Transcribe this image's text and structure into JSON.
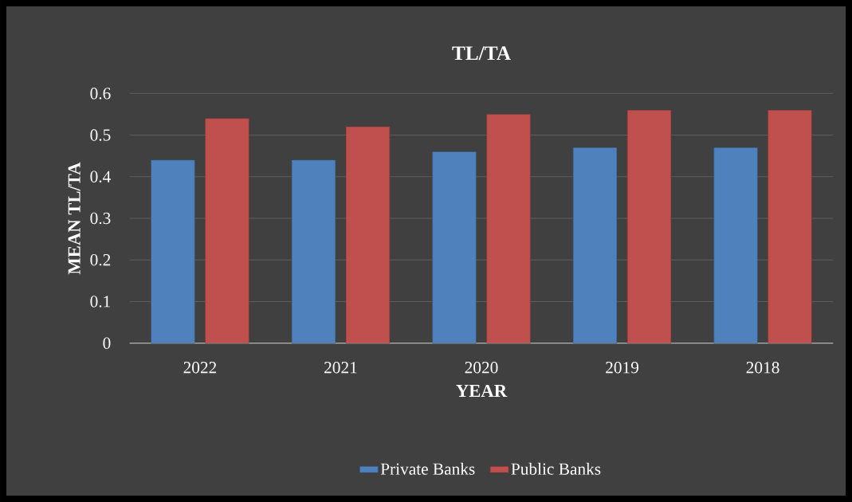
{
  "chart_data": {
    "type": "bar",
    "title": "TL/TA",
    "xlabel": "YEAR",
    "ylabel": "MEAN TL/TA",
    "categories": [
      "2022",
      "2021",
      "2020",
      "2019",
      "2018"
    ],
    "series": [
      {
        "name": "Private Banks",
        "color": "#4f81bd",
        "values": [
          0.44,
          0.44,
          0.46,
          0.47,
          0.47
        ]
      },
      {
        "name": "Public Banks",
        "color": "#c0504d",
        "values": [
          0.54,
          0.52,
          0.55,
          0.56,
          0.56
        ]
      }
    ],
    "ylim": [
      0,
      0.6
    ],
    "yticks": [
      0,
      0.1,
      0.2,
      0.3,
      0.4,
      0.5,
      0.6
    ],
    "grid": "y",
    "legend": "bottom"
  }
}
